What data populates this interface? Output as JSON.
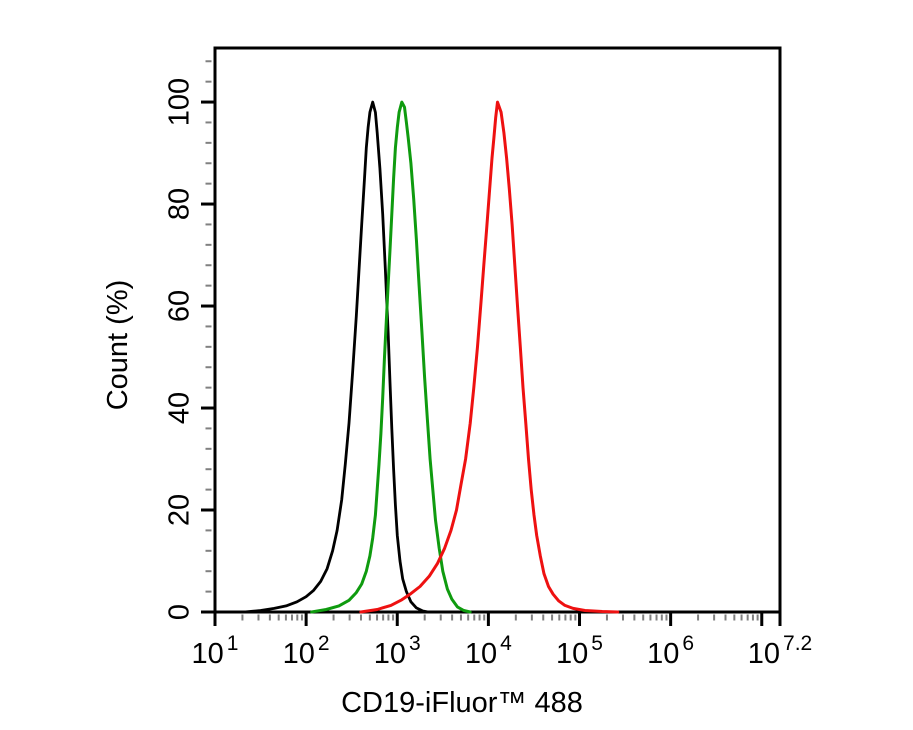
{
  "figure": {
    "background": "#ffffff",
    "description": "Flow cytometry overlay histogram, three traces, no legend, no gridlines"
  },
  "chart_data": {
    "type": "line",
    "title": "",
    "xlabel": "CD19-iFluor™ 488",
    "ylabel": "Count (%)",
    "x_scale": "log10",
    "x_base_label": "10",
    "xlim_log": [
      1,
      7.2
    ],
    "ylim": [
      0,
      110.6
    ],
    "grid": false,
    "legend_position": "none",
    "axis_color": "#000000",
    "minor_tick_color": "#808080",
    "x_major_ticks": [
      {
        "exp": 1,
        "label": "1"
      },
      {
        "exp": 2,
        "label": "2"
      },
      {
        "exp": 3,
        "label": "3"
      },
      {
        "exp": 4,
        "label": "4"
      },
      {
        "exp": 5,
        "label": "5"
      },
      {
        "exp": 6,
        "label": "6"
      },
      {
        "exp": 7,
        "label": ""
      },
      {
        "exp": 7.2,
        "label": "7.2"
      }
    ],
    "y_major_ticks": [
      0,
      20,
      40,
      60,
      80,
      100
    ],
    "y_minor_step": 4,
    "series": [
      {
        "name": "black",
        "color": "#000000",
        "stroke_width": 2.8,
        "peak_log10": 2.73,
        "peak_value_approx": 540,
        "points": [
          [
            1.32,
            0
          ],
          [
            1.5,
            0.3
          ],
          [
            1.65,
            0.7
          ],
          [
            1.78,
            1.2
          ],
          [
            1.9,
            2
          ],
          [
            2.0,
            3
          ],
          [
            2.08,
            4.2
          ],
          [
            2.16,
            6
          ],
          [
            2.23,
            8.5
          ],
          [
            2.29,
            12
          ],
          [
            2.34,
            16
          ],
          [
            2.39,
            22
          ],
          [
            2.43,
            29
          ],
          [
            2.47,
            37
          ],
          [
            2.51,
            47
          ],
          [
            2.55,
            58
          ],
          [
            2.58,
            67
          ],
          [
            2.61,
            76
          ],
          [
            2.64,
            85
          ],
          [
            2.66,
            91
          ],
          [
            2.68,
            95
          ],
          [
            2.7,
            98
          ],
          [
            2.73,
            100
          ],
          [
            2.76,
            98
          ],
          [
            2.78,
            94
          ],
          [
            2.81,
            87
          ],
          [
            2.84,
            78
          ],
          [
            2.87,
            67
          ],
          [
            2.9,
            55
          ],
          [
            2.92,
            45
          ],
          [
            2.94,
            36
          ],
          [
            2.96,
            28
          ],
          [
            2.98,
            21
          ],
          [
            3.0,
            15
          ],
          [
            3.03,
            10
          ],
          [
            3.06,
            6.5
          ],
          [
            3.1,
            4
          ],
          [
            3.15,
            2
          ],
          [
            3.21,
            0.8
          ],
          [
            3.28,
            0.2
          ],
          [
            3.34,
            0
          ]
        ]
      },
      {
        "name": "green",
        "color": "#0f9b0f",
        "stroke_width": 3,
        "peak_log10": 3.05,
        "peak_value_approx": 1120,
        "points": [
          [
            2.06,
            0
          ],
          [
            2.22,
            0.5
          ],
          [
            2.36,
            1.2
          ],
          [
            2.47,
            2.3
          ],
          [
            2.55,
            3.8
          ],
          [
            2.61,
            5.5
          ],
          [
            2.66,
            8
          ],
          [
            2.7,
            11
          ],
          [
            2.73,
            14.5
          ],
          [
            2.76,
            19
          ],
          [
            2.78,
            24
          ],
          [
            2.8,
            29
          ],
          [
            2.82,
            35
          ],
          [
            2.84,
            42
          ],
          [
            2.86,
            50
          ],
          [
            2.88,
            57
          ],
          [
            2.9,
            64
          ],
          [
            2.92,
            71
          ],
          [
            2.94,
            78
          ],
          [
            2.96,
            85
          ],
          [
            2.98,
            91
          ],
          [
            3.0,
            95
          ],
          [
            3.02,
            98
          ],
          [
            3.05,
            100
          ],
          [
            3.08,
            99
          ],
          [
            3.1,
            96
          ],
          [
            3.12,
            93
          ],
          [
            3.15,
            88
          ],
          [
            3.18,
            81
          ],
          [
            3.21,
            73
          ],
          [
            3.24,
            64
          ],
          [
            3.27,
            55
          ],
          [
            3.3,
            46
          ],
          [
            3.33,
            38
          ],
          [
            3.36,
            30
          ],
          [
            3.39,
            24
          ],
          [
            3.42,
            18
          ],
          [
            3.46,
            12.5
          ],
          [
            3.5,
            8
          ],
          [
            3.55,
            4.5
          ],
          [
            3.6,
            2.5
          ],
          [
            3.66,
            1
          ],
          [
            3.73,
            0.3
          ],
          [
            3.8,
            0
          ]
        ]
      },
      {
        "name": "red",
        "color": "#ee1111",
        "stroke_width": 3,
        "peak_log10": 4.1,
        "peak_value_approx": 12600,
        "points": [
          [
            2.6,
            0
          ],
          [
            2.78,
            0.5
          ],
          [
            2.93,
            1.3
          ],
          [
            3.05,
            2.4
          ],
          [
            3.15,
            3.6
          ],
          [
            3.25,
            5
          ],
          [
            3.35,
            7
          ],
          [
            3.44,
            9.5
          ],
          [
            3.52,
            12.5
          ],
          [
            3.59,
            16
          ],
          [
            3.65,
            20
          ],
          [
            3.7,
            25
          ],
          [
            3.75,
            30
          ],
          [
            3.8,
            37
          ],
          [
            3.84,
            44
          ],
          [
            3.88,
            52
          ],
          [
            3.92,
            61
          ],
          [
            3.95,
            68
          ],
          [
            3.98,
            75
          ],
          [
            4.01,
            82
          ],
          [
            4.04,
            89
          ],
          [
            4.06,
            93
          ],
          [
            4.08,
            97
          ],
          [
            4.1,
            100
          ],
          [
            4.14,
            98
          ],
          [
            4.17,
            94
          ],
          [
            4.2,
            89
          ],
          [
            4.23,
            83
          ],
          [
            4.26,
            76
          ],
          [
            4.29,
            68
          ],
          [
            4.32,
            60
          ],
          [
            4.35,
            52
          ],
          [
            4.38,
            44
          ],
          [
            4.41,
            37
          ],
          [
            4.44,
            30
          ],
          [
            4.47,
            24
          ],
          [
            4.5,
            19
          ],
          [
            4.53,
            15
          ],
          [
            4.57,
            11
          ],
          [
            4.61,
            7.5
          ],
          [
            4.66,
            5
          ],
          [
            4.71,
            3.5
          ],
          [
            4.77,
            2.2
          ],
          [
            4.84,
            1.3
          ],
          [
            4.93,
            0.7
          ],
          [
            5.06,
            0.3
          ],
          [
            5.25,
            0.1
          ],
          [
            5.42,
            0
          ]
        ]
      }
    ]
  }
}
